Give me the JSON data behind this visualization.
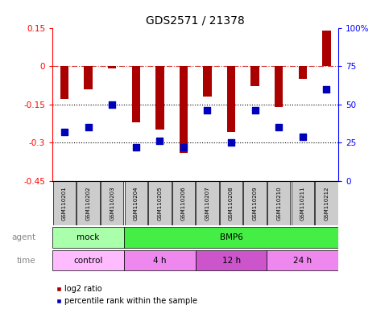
{
  "title": "GDS2571 / 21378",
  "samples": [
    "GSM110201",
    "GSM110202",
    "GSM110203",
    "GSM110204",
    "GSM110205",
    "GSM110206",
    "GSM110207",
    "GSM110208",
    "GSM110209",
    "GSM110210",
    "GSM110211",
    "GSM110212"
  ],
  "log2_ratio": [
    -0.13,
    -0.09,
    -0.01,
    -0.22,
    -0.25,
    -0.34,
    -0.12,
    -0.26,
    -0.08,
    -0.16,
    -0.05,
    0.14
  ],
  "percentile": [
    32,
    35,
    50,
    22,
    26,
    22,
    46,
    25,
    46,
    35,
    29,
    60
  ],
  "ylim_left": [
    -0.45,
    0.15
  ],
  "ylim_right": [
    0,
    100
  ],
  "yticks_left": [
    0.15,
    0.0,
    -0.15,
    -0.3,
    -0.45
  ],
  "yticks_right": [
    100,
    75,
    50,
    25,
    0
  ],
  "hlines_dashed": [
    0.0
  ],
  "hlines_dotted": [
    -0.15,
    -0.3
  ],
  "bar_color": "#aa0000",
  "dot_color": "#0000bb",
  "bar_width": 0.35,
  "dot_size": 30,
  "agent_row": [
    {
      "label": "mock",
      "start": 0,
      "end": 3,
      "color": "#aaffaa"
    },
    {
      "label": "BMP6",
      "start": 3,
      "end": 12,
      "color": "#44ee44"
    }
  ],
  "time_row": [
    {
      "label": "control",
      "start": 0,
      "end": 3,
      "color": "#ffbbff"
    },
    {
      "label": "4 h",
      "start": 3,
      "end": 6,
      "color": "#ee88ee"
    },
    {
      "label": "12 h",
      "start": 6,
      "end": 9,
      "color": "#cc55cc"
    },
    {
      "label": "24 h",
      "start": 9,
      "end": 12,
      "color": "#ee88ee"
    }
  ],
  "legend_red_label": "log2 ratio",
  "legend_blue_label": "percentile rank within the sample",
  "agent_label": "agent",
  "time_label": "time",
  "gray_label_color": "#888888",
  "title_fontsize": 10,
  "tick_fontsize": 7.5,
  "row_fontsize": 7.5,
  "legend_fontsize": 7,
  "sample_fontsize": 5,
  "sample_box_color": "#cccccc"
}
